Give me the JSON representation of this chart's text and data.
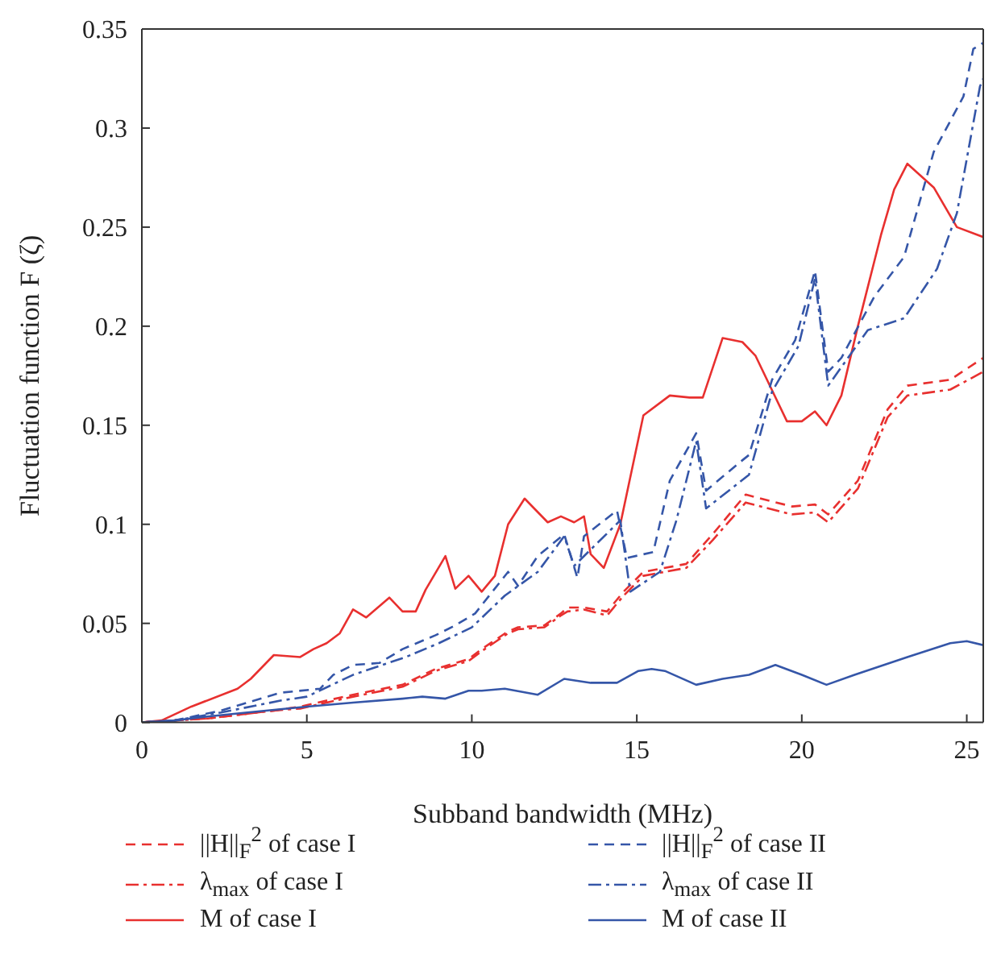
{
  "chart_data": {
    "type": "line",
    "xlabel": "Subband bandwidth (MHz)",
    "ylabel": "Fluctuation function F (ζ)",
    "xlim": [
      0,
      25.5
    ],
    "xticks": [
      0,
      5,
      10,
      15,
      20,
      25
    ],
    "ylim": [
      0,
      0.35
    ],
    "yticks": [
      0,
      0.05,
      0.1,
      0.15,
      0.2,
      0.25,
      0.3,
      0.35
    ],
    "grid": false,
    "legend": "bottom",
    "marker": "none",
    "series": [
      {
        "name": "||H||$_{F}$$^{2}$ of case I",
        "color": "#e8302f",
        "line_style": "dashed",
        "x": [
          0,
          1,
          2,
          3,
          4,
          4.8,
          6.4,
          7.9,
          8.9,
          9.9,
          10.3,
          11.1,
          11.4,
          12.2,
          12.7,
          12.9,
          13.4,
          14.1,
          14.6,
          15.2,
          16.5,
          17.3,
          18.3,
          19.7,
          20.4,
          20.8,
          21.7,
          22.6,
          23.2,
          24.5,
          25.5
        ],
        "values": [
          0,
          0.001,
          0.002,
          0.004,
          0.006,
          0.008,
          0.014,
          0.019,
          0.027,
          0.032,
          0.037,
          0.046,
          0.048,
          0.049,
          0.055,
          0.058,
          0.058,
          0.056,
          0.066,
          0.076,
          0.08,
          0.095,
          0.115,
          0.109,
          0.11,
          0.105,
          0.122,
          0.158,
          0.17,
          0.173,
          0.184
        ]
      },
      {
        "name": "λ$_{max}$ of case I",
        "color": "#e8302f",
        "line_style": "dashdot",
        "x": [
          0,
          1,
          2,
          3,
          4,
          4.8,
          6.4,
          7.9,
          8.9,
          9.9,
          10.3,
          11.1,
          11.4,
          12.2,
          12.7,
          12.9,
          13.4,
          14.1,
          14.6,
          15.2,
          16.5,
          17.3,
          18.3,
          19.7,
          20.4,
          20.8,
          21.7,
          22.6,
          23.2,
          24.5,
          25.5
        ],
        "values": [
          0,
          0.001,
          0.002,
          0.004,
          0.006,
          0.007,
          0.013,
          0.018,
          0.026,
          0.031,
          0.036,
          0.045,
          0.047,
          0.048,
          0.054,
          0.056,
          0.057,
          0.054,
          0.064,
          0.074,
          0.078,
          0.092,
          0.111,
          0.105,
          0.106,
          0.101,
          0.118,
          0.154,
          0.165,
          0.168,
          0.177
        ]
      },
      {
        "name": "M of case I",
        "color": "#e8302f",
        "line_style": "solid",
        "x": [
          0,
          0.6,
          1.5,
          2.9,
          3.3,
          4.0,
          4.8,
          5.2,
          5.6,
          6.0,
          6.4,
          6.8,
          7.5,
          7.9,
          8.3,
          8.6,
          9.2,
          9.5,
          9.9,
          10.3,
          10.7,
          11.1,
          11.6,
          12.3,
          12.7,
          13.1,
          13.4,
          13.6,
          14.0,
          14.5,
          15.2,
          16.0,
          16.6,
          17.0,
          17.6,
          18.2,
          18.6,
          19.55,
          20.0,
          20.4,
          20.75,
          21.2,
          21.7,
          22.4,
          22.8,
          23.2,
          24.0,
          24.7,
          25.5
        ],
        "values": [
          0,
          0.001,
          0.008,
          0.017,
          0.022,
          0.034,
          0.033,
          0.037,
          0.04,
          0.045,
          0.057,
          0.053,
          0.063,
          0.056,
          0.056,
          0.067,
          0.084,
          0.0675,
          0.074,
          0.066,
          0.074,
          0.1,
          0.113,
          0.101,
          0.104,
          0.101,
          0.104,
          0.085,
          0.078,
          0.1,
          0.155,
          0.165,
          0.164,
          0.164,
          0.194,
          0.192,
          0.185,
          0.152,
          0.152,
          0.157,
          0.15,
          0.165,
          0.2,
          0.246,
          0.269,
          0.282,
          0.27,
          0.25,
          0.245
        ]
      },
      {
        "name": "||H||$_{F}$$^{2}$ of case II",
        "color": "#3556a8",
        "line_style": "dashed",
        "x": [
          0,
          1,
          2.4,
          4.2,
          5.4,
          5.8,
          6.4,
          7.2,
          7.9,
          8.9,
          9.5,
          10.1,
          11.1,
          11.4,
          12.0,
          12.8,
          13.2,
          13.4,
          14.4,
          14.7,
          15.5,
          16.0,
          16.8,
          17.1,
          18.1,
          18.4,
          19.1,
          19.8,
          20.4,
          20.8,
          21.2,
          22.2,
          23.1,
          24.0,
          24.9,
          25.2,
          25.5
        ],
        "values": [
          0,
          0.001,
          0.006,
          0.015,
          0.017,
          0.024,
          0.029,
          0.03,
          0.037,
          0.044,
          0.049,
          0.055,
          0.076,
          0.069,
          0.084,
          0.095,
          0.073,
          0.094,
          0.107,
          0.083,
          0.086,
          0.122,
          0.146,
          0.117,
          0.131,
          0.135,
          0.173,
          0.193,
          0.228,
          0.177,
          0.184,
          0.215,
          0.235,
          0.288,
          0.316,
          0.34,
          0.343
        ]
      },
      {
        "name": "λ$_{max}$ of case II",
        "color": "#3556a8",
        "line_style": "dashdot",
        "x": [
          0,
          1,
          2.4,
          4.2,
          5,
          6.4,
          8,
          9,
          10,
          11,
          12.0,
          12.8,
          13.1,
          14.5,
          14.8,
          15.7,
          16.2,
          16.8,
          17.1,
          18.4,
          19.1,
          19.9,
          20.4,
          20.8,
          22.0,
          23.1,
          24.1,
          24.7,
          25.4,
          25.5
        ],
        "values": [
          0,
          0.001,
          0.005,
          0.011,
          0.013,
          0.024,
          0.033,
          0.04,
          0.048,
          0.064,
          0.076,
          0.094,
          0.079,
          0.102,
          0.066,
          0.076,
          0.102,
          0.142,
          0.108,
          0.125,
          0.167,
          0.19,
          0.224,
          0.17,
          0.198,
          0.204,
          0.229,
          0.257,
          0.321,
          0.325
        ]
      },
      {
        "name": "M of case II",
        "color": "#3556a8",
        "line_style": "solid",
        "x": [
          0,
          1,
          2,
          3.2,
          5.0,
          6.4,
          7.9,
          8.5,
          9.2,
          9.9,
          10.3,
          11.0,
          12.0,
          12.8,
          13.6,
          14.4,
          15.05,
          15.45,
          15.85,
          16.8,
          17.6,
          18.4,
          19.2,
          20.0,
          20.75,
          21.6,
          23.2,
          24.5,
          25.0,
          25.5
        ],
        "values": [
          0,
          0.001,
          0.003,
          0.005,
          0.008,
          0.01,
          0.012,
          0.013,
          0.012,
          0.016,
          0.016,
          0.017,
          0.014,
          0.022,
          0.02,
          0.02,
          0.026,
          0.027,
          0.026,
          0.019,
          0.022,
          0.024,
          0.029,
          0.024,
          0.019,
          0.024,
          0.033,
          0.04,
          0.041,
          0.039
        ]
      }
    ]
  }
}
